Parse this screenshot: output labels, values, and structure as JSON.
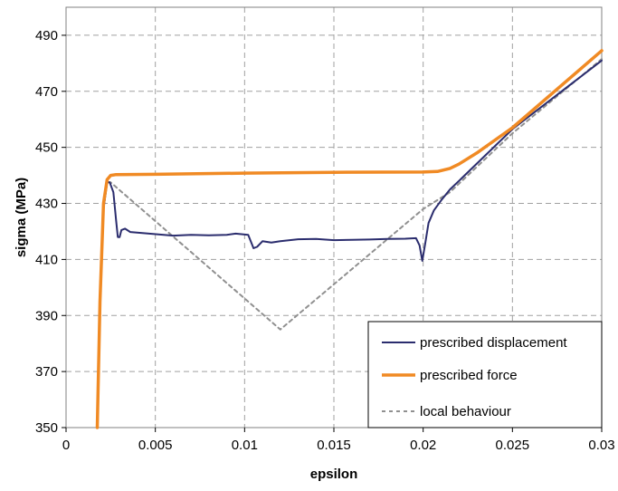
{
  "chart_data": {
    "type": "line",
    "title": "",
    "xlabel": "epsilon",
    "ylabel": "sigma (MPa)",
    "xlim": [
      0,
      0.03
    ],
    "ylim": [
      350,
      500
    ],
    "x_ticks": [
      0,
      0.005,
      0.01,
      0.015,
      0.02,
      0.025,
      0.03
    ],
    "x_tick_labels": [
      "0",
      "0.005",
      "0.01",
      "0.015",
      "0.02",
      "0.025",
      "0.03"
    ],
    "y_ticks": [
      350,
      370,
      390,
      410,
      430,
      450,
      470,
      490
    ],
    "y_tick_labels": [
      "350",
      "370",
      "390",
      "410",
      "430",
      "450",
      "470",
      "490"
    ],
    "grid": true,
    "legend_position": "bottom-right",
    "series": [
      {
        "name": "prescribed displacement",
        "color": "#2b2d6e",
        "style": "solid",
        "x": [
          0.00175,
          0.0019,
          0.0021,
          0.0023,
          0.00245,
          0.00265,
          0.0028,
          0.0029,
          0.003,
          0.0031,
          0.0033,
          0.0036,
          0.0045,
          0.006,
          0.007,
          0.008,
          0.009,
          0.0095,
          0.0102,
          0.0105,
          0.0107,
          0.011,
          0.0115,
          0.012,
          0.013,
          0.014,
          0.015,
          0.016,
          0.017,
          0.018,
          0.019,
          0.0196,
          0.0198,
          0.01995,
          0.0201,
          0.0203,
          0.0206,
          0.021,
          0.0215,
          0.022,
          0.025,
          0.03
        ],
        "y": [
          350,
          395,
          428,
          437.5,
          437.5,
          434,
          424,
          418,
          418,
          420.5,
          421,
          419.8,
          419.3,
          418.5,
          418.8,
          418.6,
          418.8,
          419.2,
          418.8,
          414,
          414.5,
          416.5,
          416,
          416.5,
          417.2,
          417.3,
          416.9,
          417.0,
          417.1,
          417.3,
          417.4,
          417.6,
          415,
          409.5,
          415,
          423,
          427.5,
          431,
          435,
          438,
          456.5,
          481
        ]
      },
      {
        "name": "prescribed force",
        "color": "#f08a24",
        "style": "solid",
        "x": [
          0.00175,
          0.0019,
          0.0021,
          0.0023,
          0.0025,
          0.0028,
          0.005,
          0.01,
          0.015,
          0.02,
          0.0208,
          0.0215,
          0.022,
          0.023,
          0.025,
          0.03
        ],
        "y": [
          350,
          395,
          430,
          438.5,
          440,
          440.3,
          440.4,
          440.8,
          441.1,
          441.2,
          441.4,
          442.5,
          444,
          448,
          457,
          484.5
        ]
      },
      {
        "name": "local behaviour",
        "color": "#909090",
        "style": "dashed",
        "x": [
          0.00175,
          0.0019,
          0.0021,
          0.0023,
          0.0025,
          0.012,
          0.02,
          0.0215,
          0.022,
          0.025,
          0.03
        ],
        "y": [
          350,
          395,
          428,
          437.5,
          437.5,
          385,
          428,
          434,
          437,
          455,
          481.5
        ]
      }
    ]
  }
}
